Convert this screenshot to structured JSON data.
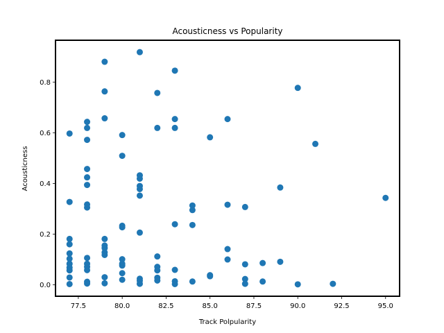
{
  "chart_data": {
    "type": "scatter",
    "title": "Acousticness vs Popularity",
    "xlabel": "Track Polpularity",
    "ylabel": "Acousticness",
    "xlim": [
      76.2,
      95.8
    ],
    "ylim": [
      -0.045,
      0.965
    ],
    "grid": false,
    "color": "#1f77b4",
    "xticks": [
      "77.5",
      "80.0",
      "82.5",
      "85.0",
      "87.5",
      "90.0",
      "92.5",
      "95.0"
    ],
    "xtick_values": [
      77.5,
      80.0,
      82.5,
      85.0,
      87.5,
      90.0,
      92.5,
      95.0
    ],
    "yticks": [
      "0.0",
      "0.2",
      "0.4",
      "0.6",
      "0.8"
    ],
    "ytick_values": [
      0.0,
      0.2,
      0.4,
      0.6,
      0.8
    ],
    "points": [
      [
        77,
        0.597
      ],
      [
        77,
        0.327
      ],
      [
        77,
        0.181
      ],
      [
        77,
        0.16
      ],
      [
        77,
        0.124
      ],
      [
        77,
        0.103
      ],
      [
        77,
        0.083
      ],
      [
        77,
        0.068
      ],
      [
        77,
        0.057
      ],
      [
        77,
        0.029
      ],
      [
        77,
        0.003
      ],
      [
        78,
        0.643
      ],
      [
        78,
        0.619
      ],
      [
        78,
        0.572
      ],
      [
        78,
        0.457
      ],
      [
        78,
        0.424
      ],
      [
        78,
        0.394
      ],
      [
        78,
        0.317
      ],
      [
        78,
        0.305
      ],
      [
        78,
        0.106
      ],
      [
        78,
        0.083
      ],
      [
        78,
        0.071
      ],
      [
        78,
        0.058
      ],
      [
        78,
        0.012
      ],
      [
        78,
        0.005
      ],
      [
        79,
        0.88
      ],
      [
        79,
        0.763
      ],
      [
        79,
        0.657
      ],
      [
        79,
        0.181
      ],
      [
        79,
        0.155
      ],
      [
        79,
        0.145
      ],
      [
        79,
        0.128
      ],
      [
        79,
        0.118
      ],
      [
        79,
        0.03
      ],
      [
        79,
        0.006
      ],
      [
        80,
        0.591
      ],
      [
        80,
        0.509
      ],
      [
        80,
        0.233
      ],
      [
        80,
        0.227
      ],
      [
        80,
        0.101
      ],
      [
        80,
        0.083
      ],
      [
        80,
        0.076
      ],
      [
        80,
        0.046
      ],
      [
        80,
        0.02
      ],
      [
        81,
        0.918
      ],
      [
        81,
        0.432
      ],
      [
        81,
        0.419
      ],
      [
        81,
        0.39
      ],
      [
        81,
        0.378
      ],
      [
        81,
        0.352
      ],
      [
        81,
        0.206
      ],
      [
        81,
        0.024
      ],
      [
        81,
        0.016
      ],
      [
        81,
        0.004
      ],
      [
        82,
        0.757
      ],
      [
        82,
        0.619
      ],
      [
        82,
        0.112
      ],
      [
        82,
        0.071
      ],
      [
        82,
        0.057
      ],
      [
        82,
        0.028
      ],
      [
        82,
        0.017
      ],
      [
        83,
        0.845
      ],
      [
        83,
        0.654
      ],
      [
        83,
        0.619
      ],
      [
        83,
        0.239
      ],
      [
        83,
        0.059
      ],
      [
        83,
        0.014
      ],
      [
        83,
        0.003
      ],
      [
        84,
        0.313
      ],
      [
        84,
        0.295
      ],
      [
        84,
        0.236
      ],
      [
        84,
        0.013
      ],
      [
        85,
        0.582
      ],
      [
        85,
        0.038
      ],
      [
        85,
        0.034
      ],
      [
        86,
        0.654
      ],
      [
        86,
        0.316
      ],
      [
        86,
        0.141
      ],
      [
        86,
        0.1
      ],
      [
        87,
        0.307
      ],
      [
        87,
        0.081
      ],
      [
        87,
        0.023
      ],
      [
        87,
        0.004
      ],
      [
        88,
        0.086
      ],
      [
        88,
        0.013
      ],
      [
        89,
        0.384
      ],
      [
        89,
        0.091
      ],
      [
        90,
        0.777
      ],
      [
        90,
        0.002
      ],
      [
        91,
        0.556
      ],
      [
        92,
        0.004
      ],
      [
        95,
        0.343
      ]
    ]
  }
}
